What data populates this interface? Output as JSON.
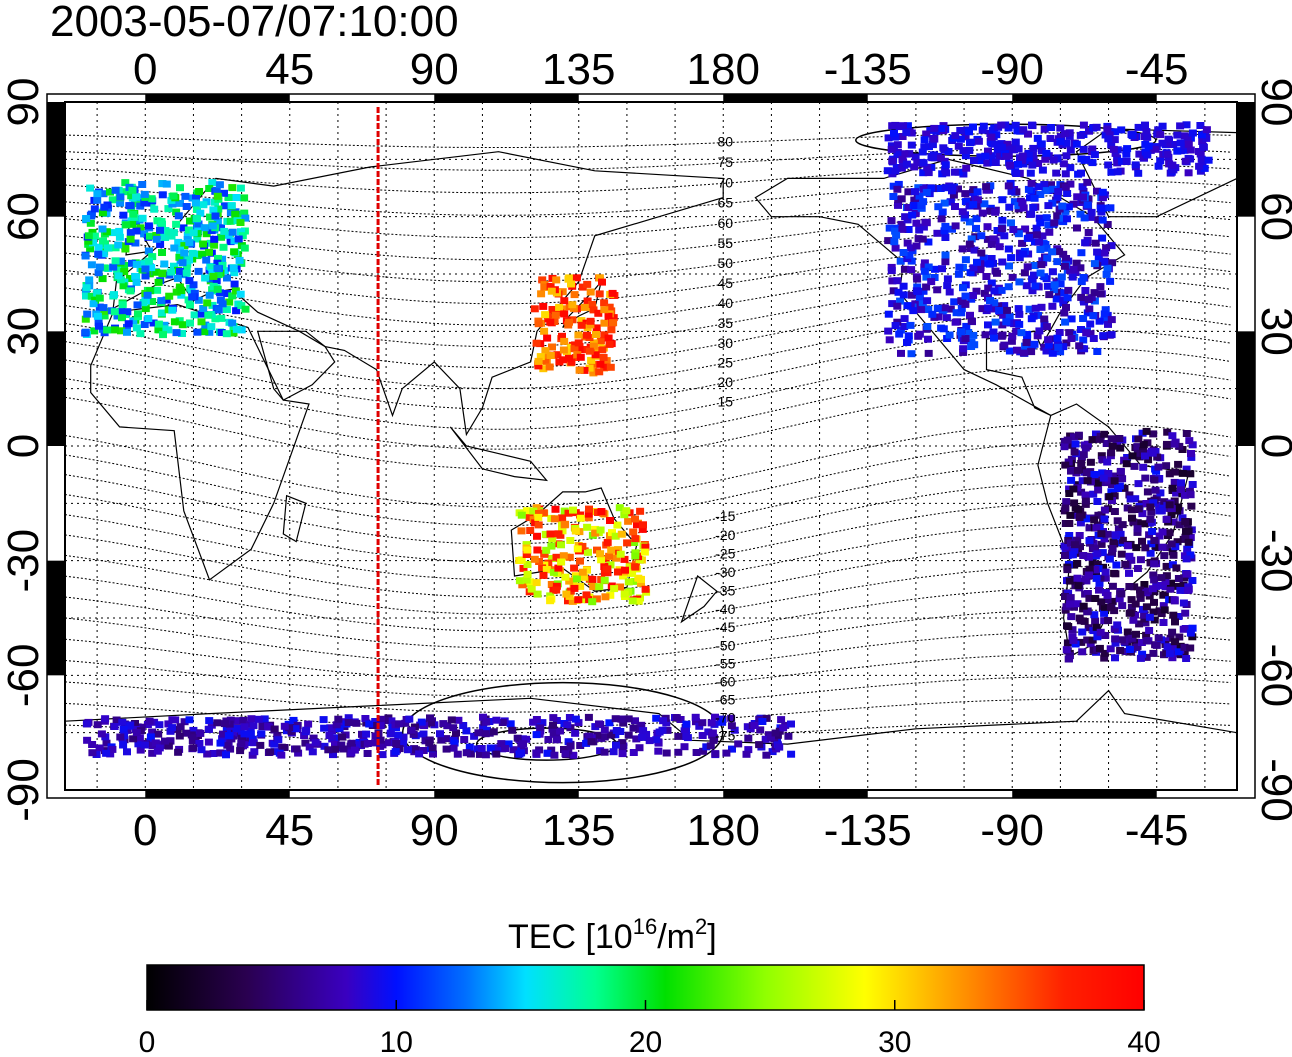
{
  "timestamp": "2003-05-07/07:10:00",
  "lon_ticks_top": [
    "0",
    "45",
    "90",
    "135",
    "180",
    "-135",
    "-90",
    "-45"
  ],
  "lon_ticks_bottom": [
    "0",
    "45",
    "90",
    "135",
    "180",
    "-135",
    "-90",
    "-45"
  ],
  "lat_ticks_left": [
    "90",
    "60",
    "30",
    "0",
    "-30",
    "-60",
    "-90"
  ],
  "lat_ticks_right": [
    "90",
    "60",
    "30",
    "0",
    "-30",
    "-60",
    "-90"
  ],
  "mlat_labels_north": [
    "80",
    "75",
    "70",
    "65",
    "60",
    "55",
    "50",
    "45",
    "40",
    "35",
    "30",
    "25",
    "20",
    "15"
  ],
  "mlat_labels_south": [
    "-15",
    "-20",
    "-25",
    "-30",
    "-35",
    "-40",
    "-45",
    "-50",
    "-55",
    "-60",
    "-65",
    "-70",
    "-75"
  ],
  "colorbar": {
    "label_main": "TEC  [10",
    "label_sup1": "16",
    "label_mid": "/m",
    "label_sup2": "2",
    "label_end": "]",
    "ticks": [
      "0",
      "10",
      "20",
      "30",
      "40"
    ],
    "min": 0,
    "max": 40
  },
  "colors": {
    "meridian_line": "#e00000",
    "frame": "#000000"
  },
  "map_data": {
    "type": "map",
    "lon_range": [
      -25,
      340
    ],
    "lat_range": [
      -90,
      90
    ],
    "meridian_lon": 72.5,
    "regions": [
      {
        "name": "europe",
        "lon": [
          -20,
          30
        ],
        "lat": [
          30,
          70
        ],
        "tec_a": 10,
        "tec_b": 22
      },
      {
        "name": "north-america",
        "lon": [
          230,
          300
        ],
        "lat": [
          25,
          70
        ],
        "tec_a": 6,
        "tec_b": 12
      },
      {
        "name": "east-asia",
        "lon": [
          120,
          145
        ],
        "lat": [
          20,
          45
        ],
        "tec_a": 30,
        "tec_b": 40
      },
      {
        "name": "south-america",
        "lon": [
          285,
          325
        ],
        "lat": [
          -55,
          5
        ],
        "tec_a": 2,
        "tec_b": 10
      },
      {
        "name": "australia",
        "lon": [
          115,
          155
        ],
        "lat": [
          -40,
          -15
        ],
        "tec_a": 24,
        "tec_b": 40
      },
      {
        "name": "antarctic",
        "lon": [
          -20,
          200
        ],
        "lat": [
          -80,
          -70
        ],
        "tec_a": 5,
        "tec_b": 10
      },
      {
        "name": "arctic",
        "lon": [
          230,
          330
        ],
        "lat": [
          72,
          85
        ],
        "tec_a": 8,
        "tec_b": 10
      }
    ]
  }
}
